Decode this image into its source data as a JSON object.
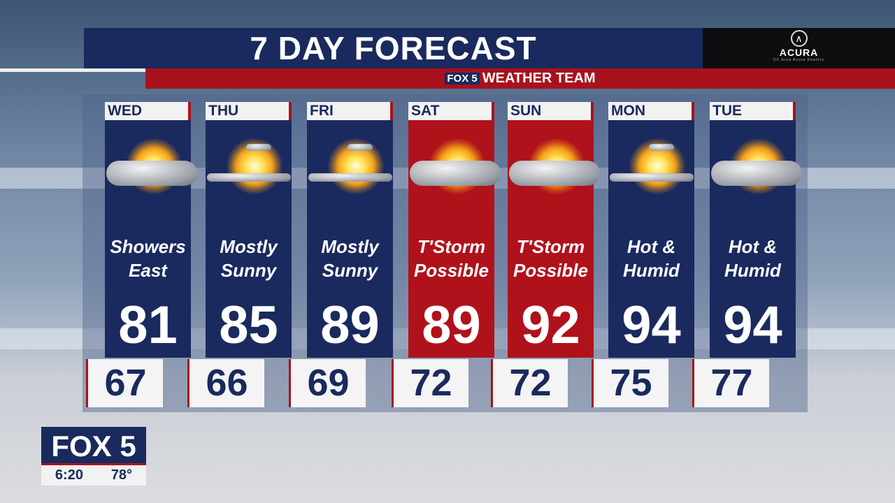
{
  "header": {
    "title": "7 DAY FORECAST",
    "subtitle_logo": "FOX 5",
    "subtitle": "WEATHER TEAM"
  },
  "sponsor": {
    "brand": "ACURA",
    "tagline": "DC Area Acura Dealers"
  },
  "colors": {
    "navy": "#1a2a5e",
    "red": "#a8121d"
  },
  "days": [
    {
      "day": "WED",
      "cond1": "Showers",
      "cond2": "East",
      "high": "81",
      "low": "67",
      "icon": "sun-behind-cloud-icon",
      "alert": false
    },
    {
      "day": "THU",
      "cond1": "Mostly",
      "cond2": "Sunny",
      "high": "85",
      "low": "66",
      "icon": "mostly-sunny-icon",
      "alert": false
    },
    {
      "day": "FRI",
      "cond1": "Mostly",
      "cond2": "Sunny",
      "high": "89",
      "low": "69",
      "icon": "mostly-sunny-icon",
      "alert": false
    },
    {
      "day": "SAT",
      "cond1": "T'Storm",
      "cond2": "Possible",
      "high": "89",
      "low": "72",
      "icon": "sun-cloud-icon",
      "alert": true
    },
    {
      "day": "SUN",
      "cond1": "T'Storm",
      "cond2": "Possible",
      "high": "92",
      "low": "72",
      "icon": "sun-storm-icon",
      "alert": true
    },
    {
      "day": "MON",
      "cond1": "Hot &",
      "cond2": "Humid",
      "high": "94",
      "low": "75",
      "icon": "mostly-sunny-icon",
      "alert": false
    },
    {
      "day": "TUE",
      "cond1": "Hot &",
      "cond2": "Humid",
      "high": "94",
      "low": "77",
      "icon": "sun-storm-icon",
      "alert": false
    }
  ],
  "bug": {
    "logo": "FOX 5",
    "time": "6:20",
    "temp": "78°"
  }
}
